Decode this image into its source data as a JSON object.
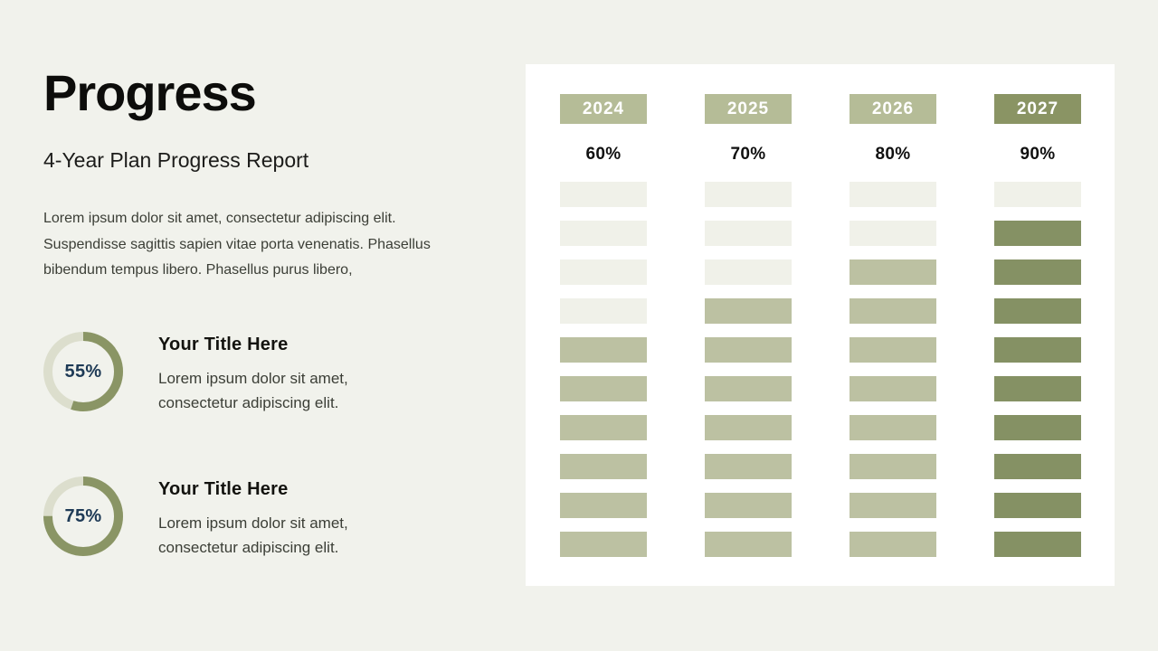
{
  "header": {
    "title": "Progress",
    "subtitle": "4-Year Plan Progress Report"
  },
  "intro_text": "Lorem ipsum dolor sit amet, consectetur adipiscing elit. Suspendisse sagittis sapien vitae porta venenatis. Phasellus bibendum tempus libero. Phasellus purus libero,",
  "features": [
    {
      "percent": 55,
      "percent_label": "55%",
      "title": "Your Title Here",
      "desc": "Lorem ipsum dolor sit amet, consectetur adipiscing elit."
    },
    {
      "percent": 75,
      "percent_label": "75%",
      "title": "Your Title Here",
      "desc": "Lorem ipsum dolor sit amet, consectetur adipiscing elit."
    }
  ],
  "colors": {
    "background": "#f1f2ec",
    "card_background": "#ffffff",
    "sage_fill": "#bcc1a2",
    "olive_fill": "#859164",
    "chip_sage": "#b5bc97",
    "chip_olive": "#8a9464",
    "empty_cell": "#f0f1e9",
    "donut_track": "#dcdecd",
    "donut_arc": "#8a9565",
    "navy_text": "#1e3a56"
  },
  "chart_data": [
    {
      "type": "bar",
      "title": "4-Year Plan Progress Report",
      "categories": [
        "2024",
        "2025",
        "2026",
        "2027"
      ],
      "values": [
        60,
        70,
        80,
        90
      ],
      "value_labels": [
        "60%",
        "70%",
        "80%",
        "90%"
      ],
      "unit": "percent",
      "segments_per_column": 10,
      "filled_segments": [
        6,
        7,
        8,
        9
      ],
      "emphasis": [
        false,
        false,
        false,
        true
      ],
      "ylim": [
        0,
        100
      ],
      "legend": "none",
      "grid": "off",
      "note": "Each year column is a stack of 10 blocks filled bottom-up; 2027 uses darker olive emphasis color."
    },
    {
      "type": "gauge",
      "value": 55,
      "label": "Your Title Here",
      "start": "top",
      "direction": "clockwise"
    },
    {
      "type": "gauge",
      "value": 75,
      "label": "Your Title Here",
      "start": "top",
      "direction": "clockwise"
    }
  ]
}
